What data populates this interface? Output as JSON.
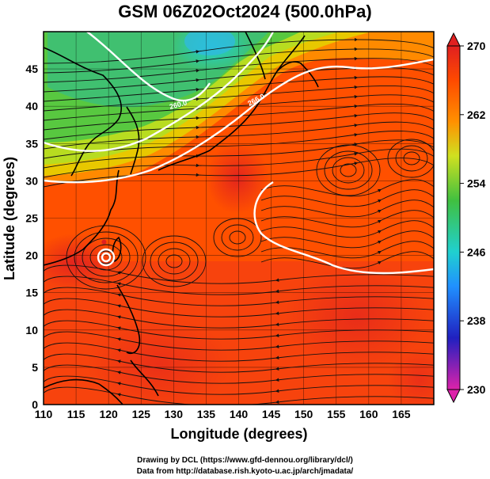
{
  "title": "GSM 06Z02Oct2024 (500.0hPa)",
  "x_axis": {
    "label": "Longitude (degrees)",
    "range": [
      110,
      170
    ],
    "ticks": [
      "110",
      "115",
      "120",
      "125",
      "130",
      "135",
      "140",
      "145",
      "150",
      "155",
      "160",
      "165"
    ],
    "tick_values": [
      110,
      115,
      120,
      125,
      130,
      135,
      140,
      145,
      150,
      155,
      160,
      165
    ]
  },
  "y_axis": {
    "label": "Latitude (degrees)",
    "range": [
      0,
      50
    ],
    "ticks": [
      "0",
      "5",
      "10",
      "15",
      "20",
      "25",
      "30",
      "35",
      "40",
      "45"
    ],
    "tick_values": [
      0,
      5,
      10,
      15,
      20,
      25,
      30,
      35,
      40,
      45
    ]
  },
  "colorbar": {
    "ticks": [
      "270",
      "262",
      "254",
      "246",
      "238",
      "230"
    ],
    "tick_values": [
      270,
      262,
      254,
      246,
      238,
      230
    ],
    "range": [
      230,
      270
    ],
    "colors": [
      "#dd22aa",
      "#2020c0",
      "#2090ff",
      "#20d0d0",
      "#40c040",
      "#d0e020",
      "#ff9000",
      "#ff4a00",
      "#e02020"
    ]
  },
  "map": {
    "field": "temperature",
    "contour_color": "#ffffff",
    "contour_labels": [
      "260.0",
      "266.0"
    ],
    "streamline_color": "#111111",
    "coastline_color": "#000000",
    "grid": true,
    "cyclone_center_lon": 119.3,
    "cyclone_center_lat": 21.8
  },
  "credits": {
    "line1": "Drawing by DCL (https://www.gfd-dennou.org/library/dcl/)",
    "line2": "Data from http://database.rish.kyoto-u.ac.jp/arch/jmadata/"
  }
}
